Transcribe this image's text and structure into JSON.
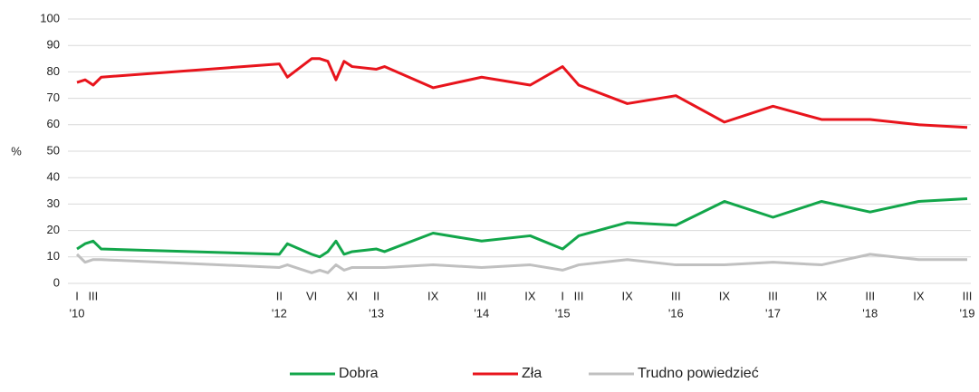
{
  "chart_data": {
    "type": "line",
    "ylabel": "%",
    "x": [
      0,
      1,
      2,
      3,
      25,
      26,
      29,
      30,
      31,
      32,
      33,
      34,
      37,
      38,
      44,
      50,
      56,
      60,
      62,
      68,
      74,
      80,
      86,
      92,
      98,
      104,
      110
    ],
    "series": [
      {
        "name": "Dobra",
        "color": "#12a64a",
        "values": [
          13,
          15,
          16,
          13,
          11,
          15,
          11,
          10,
          12,
          16,
          11,
          12,
          13,
          12,
          19,
          16,
          18,
          13,
          18,
          23,
          22,
          31,
          25,
          31,
          27,
          31,
          32
        ]
      },
      {
        "name": "Zła",
        "color": "#e8141c",
        "values": [
          76,
          77,
          75,
          78,
          83,
          78,
          85,
          85,
          84,
          77,
          84,
          82,
          81,
          82,
          74,
          78,
          75,
          82,
          75,
          68,
          71,
          61,
          67,
          62,
          62,
          60,
          59
        ]
      },
      {
        "name": "Trudno powiedzieć",
        "color": "#c0c0c0",
        "values": [
          11,
          8,
          9,
          9,
          6,
          7,
          4,
          5,
          4,
          7,
          5,
          6,
          6,
          6,
          7,
          6,
          7,
          5,
          7,
          9,
          7,
          7,
          8,
          7,
          11,
          9,
          9
        ]
      }
    ],
    "xlim": [
      0,
      110
    ],
    "xticks": [
      {
        "value": 0,
        "label": "I"
      },
      {
        "value": 2,
        "label": "III"
      },
      {
        "value": 25,
        "label": "II"
      },
      {
        "value": 29,
        "label": "VI"
      },
      {
        "value": 34,
        "label": "XI"
      },
      {
        "value": 37,
        "label": "II"
      },
      {
        "value": 44,
        "label": "IX"
      },
      {
        "value": 50,
        "label": "III"
      },
      {
        "value": 56,
        "label": "IX"
      },
      {
        "value": 60,
        "label": "I"
      },
      {
        "value": 62,
        "label": "III"
      },
      {
        "value": 68,
        "label": "IX"
      },
      {
        "value": 74,
        "label": "III"
      },
      {
        "value": 80,
        "label": "IX"
      },
      {
        "value": 86,
        "label": "III"
      },
      {
        "value": 92,
        "label": "IX"
      },
      {
        "value": 98,
        "label": "III"
      },
      {
        "value": 104,
        "label": "IX"
      },
      {
        "value": 110,
        "label": "III"
      }
    ],
    "xyears": [
      {
        "value": 0,
        "label": "'10"
      },
      {
        "value": 25,
        "label": "'12"
      },
      {
        "value": 37,
        "label": "'13"
      },
      {
        "value": 50,
        "label": "'14"
      },
      {
        "value": 60,
        "label": "'15"
      },
      {
        "value": 74,
        "label": "'16"
      },
      {
        "value": 86,
        "label": "'17"
      },
      {
        "value": 98,
        "label": "'18"
      },
      {
        "value": 110,
        "label": "'19"
      }
    ],
    "ylim": [
      0,
      100
    ],
    "yticks": [
      0,
      10,
      20,
      30,
      40,
      50,
      60,
      70,
      80,
      90,
      100
    ],
    "grid": true,
    "legend": "bottom"
  }
}
